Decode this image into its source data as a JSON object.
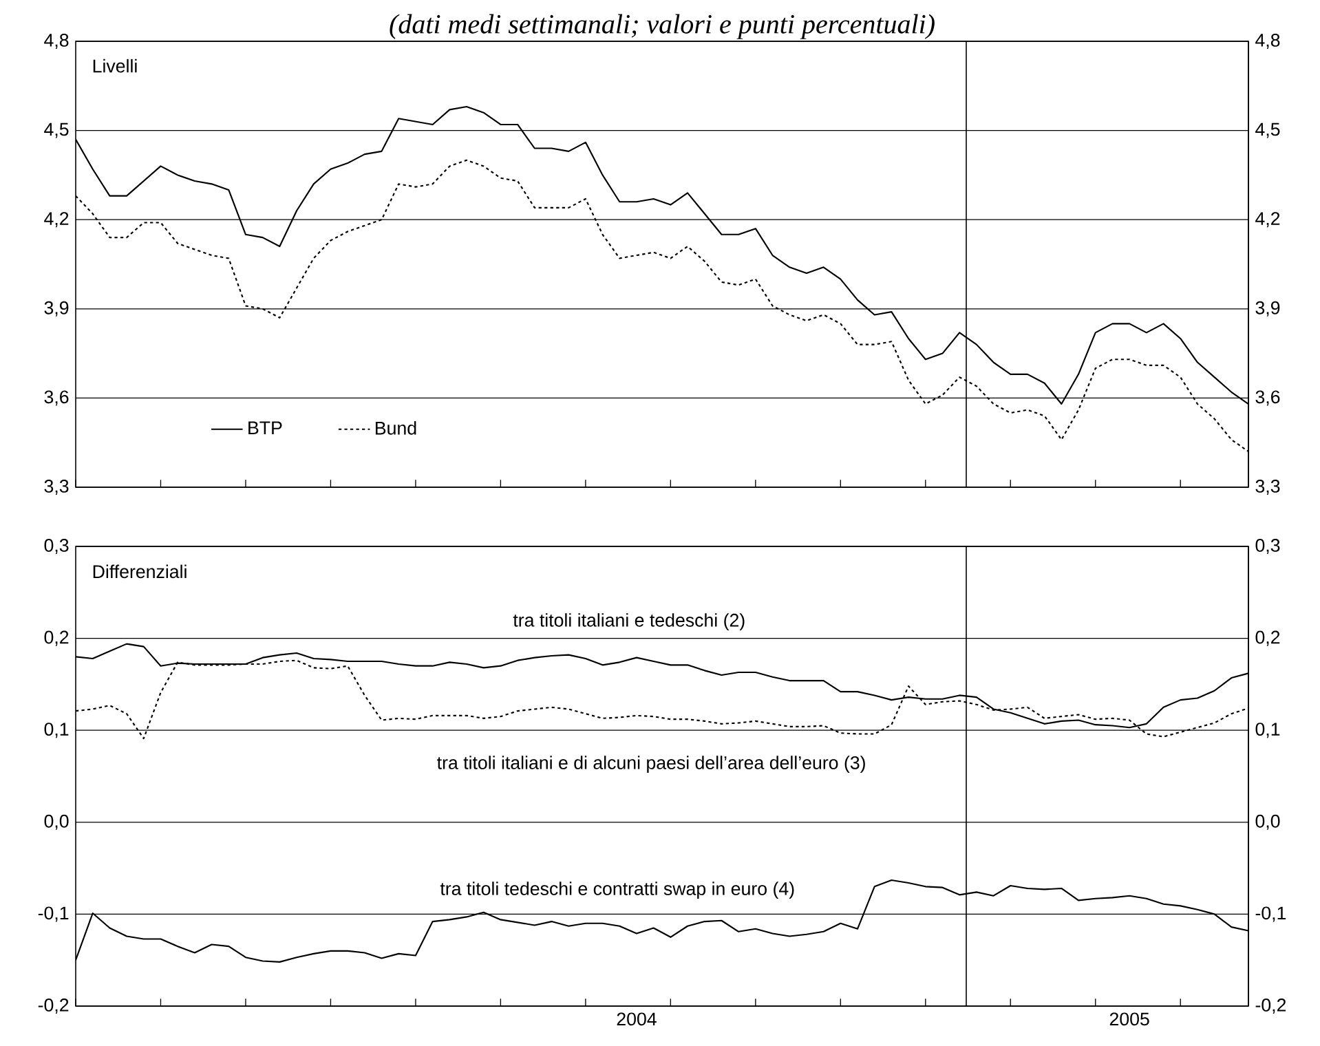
{
  "chart_data": [
    {
      "type": "line",
      "subtitle": "(dati medi settimanali; valori e punti percentuali)",
      "annotations": [
        "Livelli"
      ],
      "categories": [
        null,
        null,
        null,
        null,
        null,
        null,
        null,
        null,
        null,
        null,
        null,
        null,
        null,
        null,
        null,
        null,
        null,
        null,
        null,
        null,
        null,
        null,
        null,
        null,
        null,
        null,
        null,
        null,
        null,
        null,
        null,
        null,
        null,
        "2004",
        null,
        null,
        null,
        null,
        null,
        null,
        null,
        null,
        null,
        null,
        null,
        null,
        null,
        null,
        null,
        null,
        null,
        null,
        null,
        null,
        null,
        null,
        null,
        null,
        null,
        null,
        null,
        null,
        "2005",
        null,
        null,
        null,
        null,
        null,
        null,
        null
      ],
      "series": [
        {
          "name": "BTP",
          "color": "#000000",
          "line_style": "solid",
          "values": [
            4.47,
            4.37,
            4.28,
            4.28,
            4.33,
            4.38,
            4.35,
            4.33,
            4.32,
            4.3,
            4.15,
            4.14,
            4.11,
            4.23,
            4.32,
            4.37,
            4.39,
            4.42,
            4.43,
            4.54,
            4.53,
            4.52,
            4.57,
            4.58,
            4.56,
            4.52,
            4.52,
            4.44,
            4.44,
            4.43,
            4.46,
            4.35,
            4.26,
            4.26,
            4.27,
            4.25,
            4.29,
            4.22,
            4.15,
            4.15,
            4.17,
            4.08,
            4.04,
            4.02,
            4.04,
            4.0,
            3.93,
            3.88,
            3.89,
            3.8,
            3.73,
            3.75,
            3.82,
            3.78,
            3.72,
            3.68,
            3.68,
            3.65,
            3.58,
            3.68,
            3.82,
            3.85,
            3.85,
            3.82,
            3.85,
            3.8,
            3.72,
            3.67,
            3.62,
            3.58
          ]
        },
        {
          "name": "Bund",
          "color": "#000000",
          "line_style": "dotted",
          "values": [
            4.28,
            4.22,
            4.14,
            4.14,
            4.19,
            4.19,
            4.12,
            4.1,
            4.08,
            4.07,
            3.91,
            3.9,
            3.87,
            3.97,
            4.07,
            4.13,
            4.16,
            4.18,
            4.2,
            4.32,
            4.31,
            4.32,
            4.38,
            4.4,
            4.38,
            4.34,
            4.33,
            4.24,
            4.24,
            4.24,
            4.27,
            4.15,
            4.07,
            4.08,
            4.09,
            4.07,
            4.11,
            4.06,
            3.99,
            3.98,
            4.0,
            3.91,
            3.88,
            3.86,
            3.88,
            3.85,
            3.78,
            3.78,
            3.79,
            3.66,
            3.58,
            3.61,
            3.67,
            3.64,
            3.58,
            3.55,
            3.56,
            3.54,
            3.46,
            3.56,
            3.7,
            3.73,
            3.73,
            3.71,
            3.71,
            3.67,
            3.58,
            3.53,
            3.46,
            3.42
          ]
        }
      ],
      "ylim": [
        3.3,
        4.8
      ],
      "yticks": [
        {
          "value": 3.3,
          "label": "3,3"
        },
        {
          "value": 3.6,
          "label": "3,6"
        },
        {
          "value": 3.9,
          "label": "3,9"
        },
        {
          "value": 4.2,
          "label": "4,2"
        },
        {
          "value": 4.5,
          "label": "4,5"
        },
        {
          "value": 4.8,
          "label": "4,8"
        }
      ],
      "y2lim": [
        3.3,
        4.8
      ],
      "y2ticks": [
        {
          "value": 3.3,
          "label": "3,3"
        },
        {
          "value": 3.6,
          "label": "3,6"
        },
        {
          "value": 3.9,
          "label": "3,9"
        },
        {
          "value": 4.2,
          "label": "4,2"
        },
        {
          "value": 4.5,
          "label": "4,5"
        },
        {
          "value": 4.8,
          "label": "4,8"
        }
      ],
      "tick_labels": "y",
      "grid": "y",
      "legend": "bottom left"
    },
    {
      "type": "line",
      "annotations": [
        "Differenziali"
      ],
      "categories": [
        null,
        null,
        null,
        null,
        null,
        null,
        null,
        null,
        null,
        null,
        null,
        null,
        null,
        null,
        null,
        null,
        null,
        null,
        null,
        null,
        null,
        null,
        null,
        null,
        null,
        null,
        null,
        null,
        null,
        null,
        null,
        null,
        null,
        "2004",
        null,
        null,
        null,
        null,
        null,
        null,
        null,
        null,
        null,
        null,
        null,
        null,
        null,
        null,
        null,
        null,
        null,
        null,
        null,
        null,
        null,
        null,
        null,
        null,
        null,
        null,
        null,
        null,
        "2005",
        null,
        null,
        null,
        null,
        null,
        null,
        null
      ],
      "series": [
        {
          "name": "tra titoli italiani e tedeschi (2)",
          "color": "#000000",
          "line_style": "solid",
          "values": [
            0.18,
            0.178,
            0.186,
            0.194,
            0.191,
            0.17,
            0.173,
            0.172,
            0.172,
            0.172,
            0.172,
            0.179,
            0.182,
            0.184,
            0.178,
            0.177,
            0.175,
            0.175,
            0.175,
            0.172,
            0.17,
            0.17,
            0.174,
            0.172,
            0.168,
            0.17,
            0.176,
            0.179,
            0.181,
            0.182,
            0.178,
            0.171,
            0.174,
            0.179,
            0.175,
            0.171,
            0.171,
            0.165,
            0.16,
            0.163,
            0.163,
            0.158,
            0.154,
            0.154,
            0.154,
            0.142,
            0.142,
            0.138,
            0.133,
            0.136,
            0.134,
            0.134,
            0.138,
            0.136,
            0.123,
            0.119,
            0.113,
            0.107,
            0.11,
            0.111,
            0.106,
            0.105,
            0.103,
            0.107,
            0.125,
            0.133,
            0.135,
            0.143,
            0.157,
            0.162
          ]
        },
        {
          "name": "tra titoli italiani e di alcuni paesi dell’area dell’euro (3)",
          "color": "#000000",
          "line_style": "dotted",
          "values": [
            0.121,
            0.123,
            0.127,
            0.118,
            0.091,
            0.141,
            0.174,
            0.171,
            0.171,
            0.171,
            0.172,
            0.172,
            0.175,
            0.176,
            0.168,
            0.167,
            0.17,
            0.138,
            0.111,
            0.113,
            0.112,
            0.116,
            0.116,
            0.116,
            0.113,
            0.115,
            0.121,
            0.123,
            0.125,
            0.123,
            0.118,
            0.113,
            0.114,
            0.116,
            0.115,
            0.112,
            0.112,
            0.11,
            0.107,
            0.108,
            0.11,
            0.107,
            0.104,
            0.104,
            0.105,
            0.097,
            0.096,
            0.096,
            0.106,
            0.148,
            0.128,
            0.131,
            0.132,
            0.128,
            0.122,
            0.123,
            0.125,
            0.113,
            0.115,
            0.117,
            0.112,
            0.113,
            0.111,
            0.096,
            0.093,
            0.098,
            0.103,
            0.108,
            0.118,
            0.124
          ]
        },
        {
          "name": "tra titoli tedeschi e contratti swap in euro (4)",
          "color": "#000000",
          "line_style": "solid",
          "values": [
            -0.15,
            -0.099,
            -0.115,
            -0.124,
            -0.127,
            -0.127,
            -0.135,
            -0.142,
            -0.133,
            -0.135,
            -0.147,
            -0.151,
            -0.152,
            -0.147,
            -0.143,
            -0.14,
            -0.14,
            -0.142,
            -0.148,
            -0.143,
            -0.145,
            -0.108,
            -0.106,
            -0.103,
            -0.098,
            -0.106,
            -0.109,
            -0.112,
            -0.108,
            -0.113,
            -0.11,
            -0.11,
            -0.113,
            -0.121,
            -0.115,
            -0.125,
            -0.113,
            -0.108,
            -0.107,
            -0.119,
            -0.116,
            -0.121,
            -0.124,
            -0.122,
            -0.119,
            -0.11,
            -0.116,
            -0.07,
            -0.063,
            -0.066,
            -0.07,
            -0.071,
            -0.079,
            -0.076,
            -0.08,
            -0.069,
            -0.072,
            -0.073,
            -0.072,
            -0.085,
            -0.083,
            -0.082,
            -0.08,
            -0.083,
            -0.089,
            -0.091,
            -0.095,
            -0.1,
            -0.114,
            -0.118
          ]
        }
      ],
      "ylim": [
        -0.2,
        0.3
      ],
      "yticks": [
        {
          "value": -0.2,
          "label": "-0,2"
        },
        {
          "value": -0.1,
          "label": "-0,1"
        },
        {
          "value": 0.0,
          "label": "0,0"
        },
        {
          "value": 0.1,
          "label": "0,1"
        },
        {
          "value": 0.2,
          "label": "0,2"
        },
        {
          "value": 0.3,
          "label": "0,3"
        }
      ],
      "y2lim": [
        -0.2,
        0.3
      ],
      "y2ticks": [
        {
          "value": -0.2,
          "label": "-0,2"
        },
        {
          "value": -0.1,
          "label": "-0,1"
        },
        {
          "value": 0.0,
          "label": "0,0"
        },
        {
          "value": 0.1,
          "label": "0,1"
        },
        {
          "value": 0.2,
          "label": "0,2"
        },
        {
          "value": 0.3,
          "label": "0,3"
        }
      ],
      "grid": "y",
      "legend": false
    }
  ]
}
